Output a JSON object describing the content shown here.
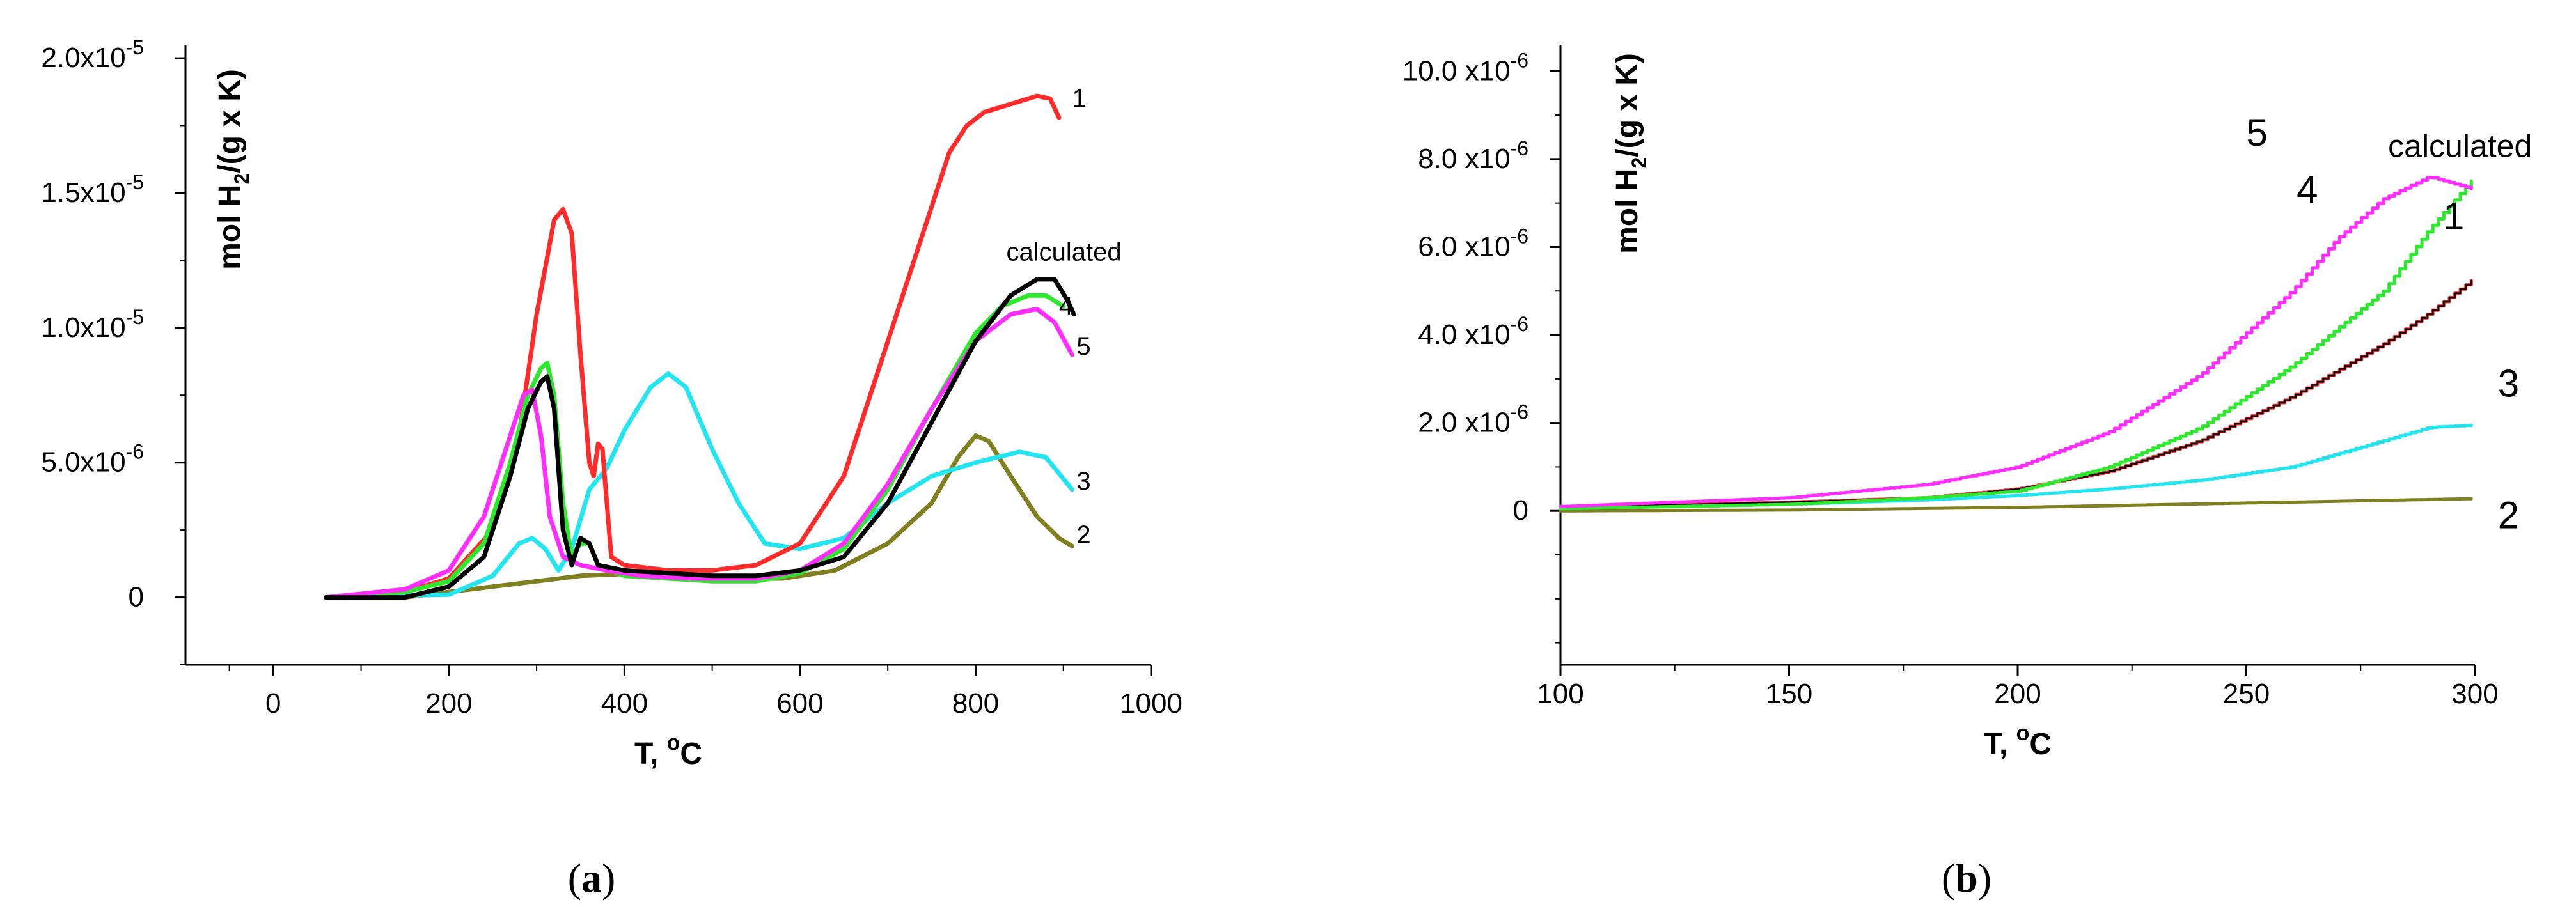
{
  "colors": {
    "1": "#ff2a2a",
    "2": "#808020",
    "3": "#22e5f0",
    "4": "#2ee82e",
    "5": "#ff2eff",
    "calculated": "#000000",
    "axis": "#000000"
  },
  "chart_data": [
    {
      "type": "line",
      "panel_label": "a",
      "xlabel": "T, ",
      "xlabel_sup": "o",
      "xlabel_unit": "C",
      "ylabel_pre": "mol H",
      "ylabel_sub": "2",
      "ylabel_post": "/(g x K)",
      "xlim": [
        -100,
        1000
      ],
      "ylim": [
        -0.25,
        2.05
      ],
      "y_scale_note": "values in units of 1e-5",
      "x_ticks": [
        {
          "value": 0,
          "label": "0"
        },
        {
          "value": 200,
          "label": "200"
        },
        {
          "value": 400,
          "label": "400"
        },
        {
          "value": 600,
          "label": "600"
        },
        {
          "value": 800,
          "label": "800"
        },
        {
          "value": 1000,
          "label": "1000"
        }
      ],
      "y_ticks": [
        {
          "value": 0,
          "base": "0",
          "exp": ""
        },
        {
          "value": 0.5,
          "base": "5.0x10",
          "exp": "-6"
        },
        {
          "value": 1.0,
          "base": "1.0x10",
          "exp": "-5"
        },
        {
          "value": 1.5,
          "base": "1.5x10",
          "exp": "-5"
        },
        {
          "value": 2.0,
          "base": "2.0x10",
          "exp": "-5"
        }
      ],
      "series": [
        {
          "key": "2",
          "label": "2",
          "label_at": [
            915,
            0.2
          ],
          "points": [
            [
              60,
              0
            ],
            [
              150,
              0
            ],
            [
              200,
              0.02
            ],
            [
              300,
              0.06
            ],
            [
              350,
              0.08
            ],
            [
              420,
              0.09
            ],
            [
              500,
              0.07
            ],
            [
              580,
              0.07
            ],
            [
              640,
              0.1
            ],
            [
              700,
              0.2
            ],
            [
              750,
              0.35
            ],
            [
              780,
              0.52
            ],
            [
              800,
              0.6
            ],
            [
              815,
              0.58
            ],
            [
              840,
              0.45
            ],
            [
              870,
              0.3
            ],
            [
              895,
              0.22
            ],
            [
              910,
              0.19
            ]
          ]
        },
        {
          "key": "3",
          "label": "3",
          "label_at": [
            915,
            0.4
          ],
          "points": [
            [
              60,
              0
            ],
            [
              200,
              0.01
            ],
            [
              250,
              0.08
            ],
            [
              280,
              0.2
            ],
            [
              295,
              0.22
            ],
            [
              310,
              0.18
            ],
            [
              325,
              0.1
            ],
            [
              340,
              0.18
            ],
            [
              360,
              0.4
            ],
            [
              380,
              0.48
            ],
            [
              400,
              0.62
            ],
            [
              430,
              0.78
            ],
            [
              450,
              0.83
            ],
            [
              470,
              0.78
            ],
            [
              500,
              0.55
            ],
            [
              530,
              0.35
            ],
            [
              560,
              0.2
            ],
            [
              600,
              0.18
            ],
            [
              650,
              0.22
            ],
            [
              700,
              0.35
            ],
            [
              750,
              0.45
            ],
            [
              800,
              0.5
            ],
            [
              850,
              0.54
            ],
            [
              880,
              0.52
            ],
            [
              910,
              0.4
            ]
          ]
        },
        {
          "key": "1",
          "label": "1",
          "label_at": [
            910,
            1.82
          ],
          "points": [
            [
              60,
              0
            ],
            [
              150,
              0.02
            ],
            [
              200,
              0.07
            ],
            [
              250,
              0.25
            ],
            [
              280,
              0.6
            ],
            [
              300,
              1.05
            ],
            [
              320,
              1.4
            ],
            [
              330,
              1.44
            ],
            [
              340,
              1.35
            ],
            [
              350,
              0.9
            ],
            [
              360,
              0.5
            ],
            [
              365,
              0.45
            ],
            [
              370,
              0.57
            ],
            [
              375,
              0.55
            ],
            [
              385,
              0.15
            ],
            [
              400,
              0.12
            ],
            [
              450,
              0.1
            ],
            [
              500,
              0.1
            ],
            [
              550,
              0.12
            ],
            [
              600,
              0.2
            ],
            [
              650,
              0.45
            ],
            [
              700,
              0.95
            ],
            [
              740,
              1.35
            ],
            [
              770,
              1.65
            ],
            [
              790,
              1.75
            ],
            [
              810,
              1.8
            ],
            [
              850,
              1.84
            ],
            [
              870,
              1.86
            ],
            [
              885,
              1.85
            ],
            [
              895,
              1.78
            ]
          ]
        },
        {
          "key": "4",
          "label": "4",
          "label_at": [
            895,
            1.05
          ],
          "points": [
            [
              60,
              0
            ],
            [
              150,
              0.02
            ],
            [
              200,
              0.06
            ],
            [
              240,
              0.2
            ],
            [
              270,
              0.5
            ],
            [
              290,
              0.75
            ],
            [
              305,
              0.85
            ],
            [
              312,
              0.87
            ],
            [
              320,
              0.75
            ],
            [
              330,
              0.35
            ],
            [
              340,
              0.15
            ],
            [
              350,
              0.2
            ],
            [
              360,
              0.2
            ],
            [
              370,
              0.12
            ],
            [
              400,
              0.08
            ],
            [
              450,
              0.07
            ],
            [
              500,
              0.06
            ],
            [
              550,
              0.06
            ],
            [
              600,
              0.09
            ],
            [
              650,
              0.18
            ],
            [
              700,
              0.4
            ],
            [
              750,
              0.7
            ],
            [
              800,
              0.98
            ],
            [
              830,
              1.08
            ],
            [
              860,
              1.12
            ],
            [
              880,
              1.12
            ],
            [
              900,
              1.08
            ]
          ]
        },
        {
          "key": "5",
          "label": "5",
          "label_at": [
            915,
            0.9
          ],
          "points": [
            [
              60,
              0
            ],
            [
              150,
              0.03
            ],
            [
              200,
              0.1
            ],
            [
              240,
              0.3
            ],
            [
              270,
              0.6
            ],
            [
              285,
              0.75
            ],
            [
              295,
              0.77
            ],
            [
              305,
              0.6
            ],
            [
              315,
              0.3
            ],
            [
              330,
              0.15
            ],
            [
              350,
              0.12
            ],
            [
              380,
              0.1
            ],
            [
              420,
              0.08
            ],
            [
              480,
              0.07
            ],
            [
              550,
              0.07
            ],
            [
              600,
              0.1
            ],
            [
              650,
              0.2
            ],
            [
              700,
              0.42
            ],
            [
              750,
              0.7
            ],
            [
              800,
              0.95
            ],
            [
              840,
              1.05
            ],
            [
              870,
              1.07
            ],
            [
              890,
              1.02
            ],
            [
              910,
              0.9
            ]
          ]
        },
        {
          "key": "calculated",
          "label": "calculated",
          "label_at": [
            835,
            1.25
          ],
          "points": [
            [
              60,
              0
            ],
            [
              150,
              0
            ],
            [
              200,
              0.04
            ],
            [
              240,
              0.15
            ],
            [
              270,
              0.45
            ],
            [
              290,
              0.7
            ],
            [
              305,
              0.8
            ],
            [
              312,
              0.82
            ],
            [
              320,
              0.7
            ],
            [
              330,
              0.25
            ],
            [
              340,
              0.12
            ],
            [
              350,
              0.22
            ],
            [
              360,
              0.2
            ],
            [
              370,
              0.12
            ],
            [
              400,
              0.1
            ],
            [
              450,
              0.09
            ],
            [
              500,
              0.08
            ],
            [
              550,
              0.08
            ],
            [
              600,
              0.1
            ],
            [
              650,
              0.15
            ],
            [
              700,
              0.35
            ],
            [
              750,
              0.65
            ],
            [
              800,
              0.95
            ],
            [
              840,
              1.12
            ],
            [
              870,
              1.18
            ],
            [
              890,
              1.18
            ],
            [
              905,
              1.1
            ],
            [
              912,
              1.05
            ]
          ]
        }
      ]
    },
    {
      "type": "line",
      "panel_label": "b",
      "xlabel": "T, ",
      "xlabel_sup": "o",
      "xlabel_unit": "C",
      "ylabel_pre": "mol H",
      "ylabel_sub": "2",
      "ylabel_post": "/(g x K)",
      "xlim": [
        100,
        300
      ],
      "ylim": [
        -3.5,
        10.6
      ],
      "y_scale_note": "values in units of 1e-6",
      "x_ticks": [
        {
          "value": 100,
          "label": "100"
        },
        {
          "value": 150,
          "label": "150"
        },
        {
          "value": 200,
          "label": "200"
        },
        {
          "value": 250,
          "label": "250"
        },
        {
          "value": 300,
          "label": "300"
        }
      ],
      "y_ticks": [
        {
          "value": 0,
          "base": "0",
          "exp": ""
        },
        {
          "value": 2,
          "base": "2.0 x10",
          "exp": "-6"
        },
        {
          "value": 4,
          "base": "4.0 x10",
          "exp": "-6"
        },
        {
          "value": 6,
          "base": "6.0 x10",
          "exp": "-6"
        },
        {
          "value": 8,
          "base": "8.0 x10",
          "exp": "-6"
        },
        {
          "value": 10,
          "base": "10.0 x10",
          "exp": "-6"
        }
      ],
      "series": [
        {
          "key": "2",
          "label": "2",
          "label_at": [
            305,
            -0.4
          ],
          "points": [
            [
              100,
              0.0
            ],
            [
              150,
              0.02
            ],
            [
              200,
              0.08
            ],
            [
              250,
              0.18
            ],
            [
              300,
              0.28
            ]
          ]
        },
        {
          "key": "3",
          "label": "3",
          "label_at": [
            305,
            2.6
          ],
          "points": [
            [
              100,
              0.05
            ],
            [
              150,
              0.15
            ],
            [
              180,
              0.25
            ],
            [
              200,
              0.35
            ],
            [
              220,
              0.5
            ],
            [
              240,
              0.7
            ],
            [
              260,
              1.0
            ],
            [
              280,
              1.6
            ],
            [
              290,
              1.9
            ],
            [
              300,
              1.95
            ]
          ]
        },
        {
          "key": "1",
          "label": "1",
          "label_at": [
            293,
            6.4
          ],
          "points": [
            [
              100,
              0.08
            ],
            [
              150,
              0.2
            ],
            [
              180,
              0.3
            ],
            [
              200,
              0.5
            ],
            [
              220,
              0.9
            ],
            [
              240,
              1.6
            ],
            [
              260,
              2.6
            ],
            [
              280,
              3.8
            ],
            [
              290,
              4.5
            ],
            [
              300,
              5.3
            ]
          ]
        },
        {
          "key": "calculated",
          "label": "",
          "label_at": null,
          "points": [
            [
              100,
              0.08
            ],
            [
              150,
              0.2
            ],
            [
              180,
              0.3
            ],
            [
              200,
              0.5
            ],
            [
              220,
              0.9
            ],
            [
              240,
              1.6
            ],
            [
              260,
              2.6
            ],
            [
              280,
              3.8
            ],
            [
              290,
              4.5
            ],
            [
              300,
              5.3
            ]
          ]
        },
        {
          "key": "4",
          "label": "4",
          "label_at": [
            261,
            7.0
          ],
          "points": [
            [
              100,
              0.05
            ],
            [
              150,
              0.15
            ],
            [
              180,
              0.3
            ],
            [
              200,
              0.45
            ],
            [
              220,
              1.0
            ],
            [
              240,
              1.9
            ],
            [
              260,
              3.3
            ],
            [
              280,
              5.0
            ],
            [
              290,
              6.4
            ],
            [
              300,
              7.6
            ]
          ]
        },
        {
          "key": "5",
          "label": "5",
          "label_at": [
            250,
            8.3
          ],
          "points": [
            [
              100,
              0.1
            ],
            [
              150,
              0.3
            ],
            [
              180,
              0.6
            ],
            [
              200,
              1.0
            ],
            [
              220,
              1.8
            ],
            [
              240,
              3.1
            ],
            [
              260,
              5.0
            ],
            [
              270,
              6.2
            ],
            [
              280,
              7.1
            ],
            [
              290,
              7.6
            ],
            [
              300,
              7.3
            ]
          ]
        }
      ],
      "extra_labels": [
        {
          "text": "calculated",
          "at": [
            281,
            8.05
          ]
        }
      ]
    }
  ]
}
